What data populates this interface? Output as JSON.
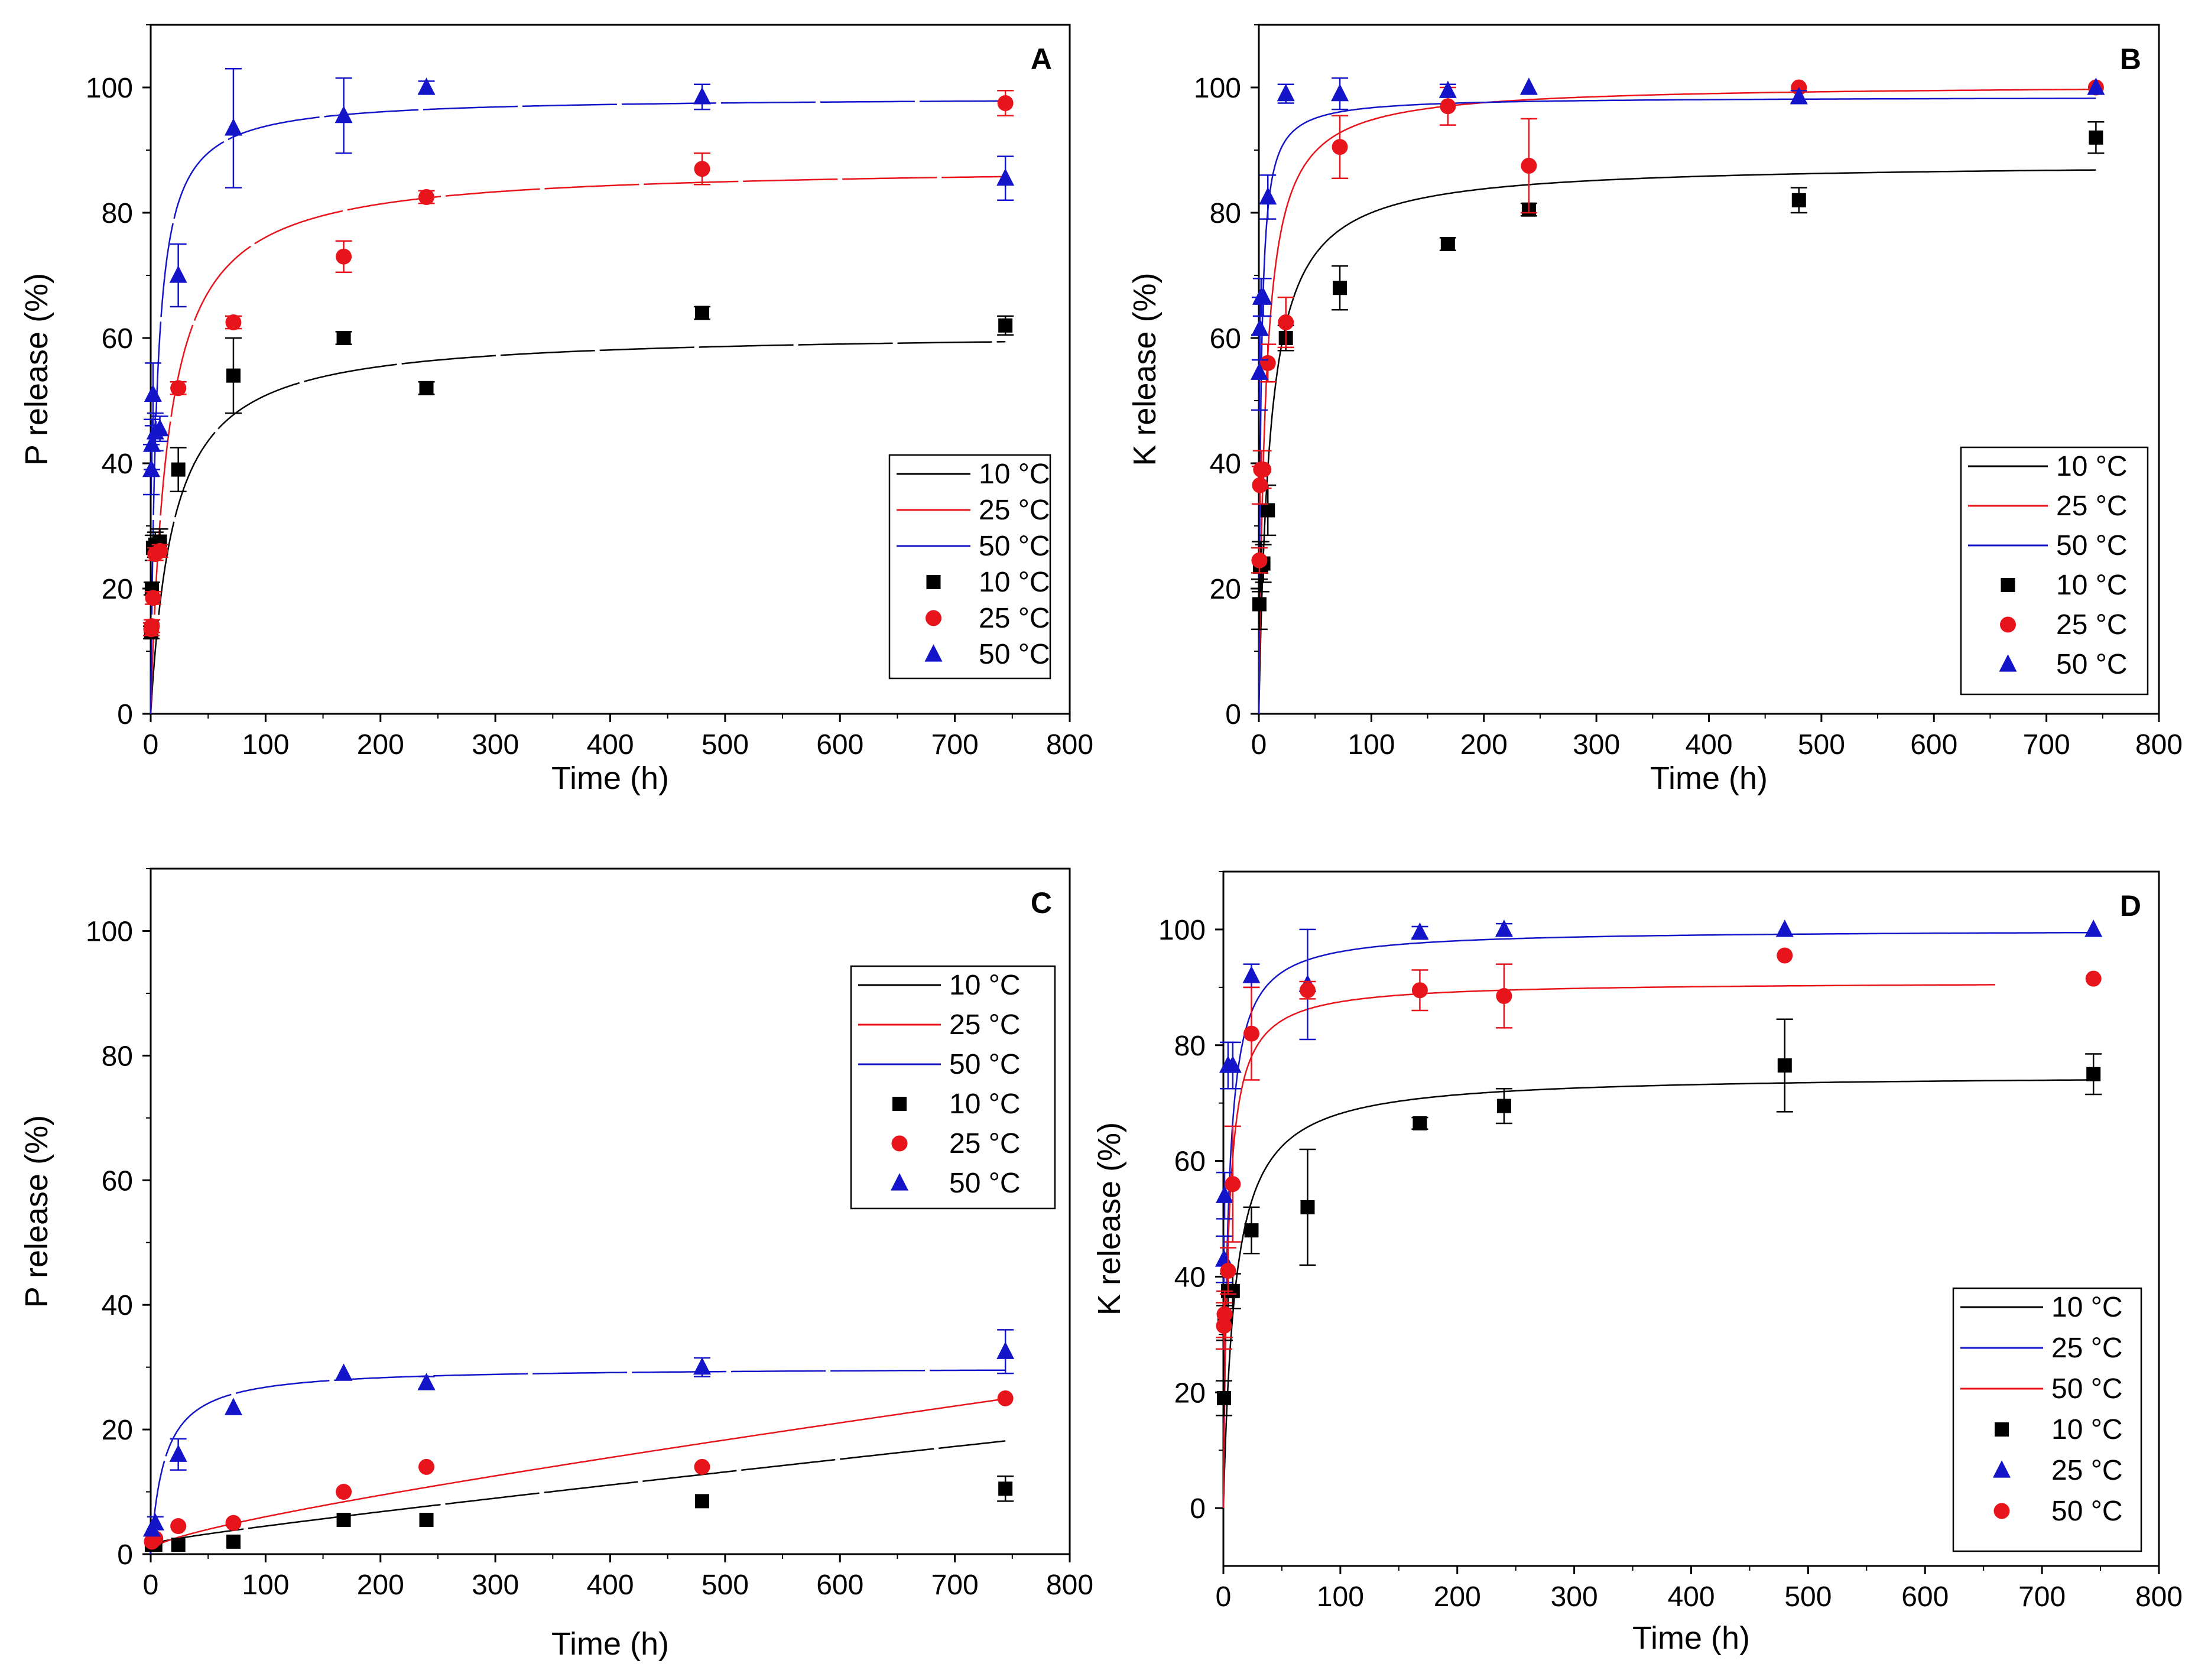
{
  "figure": {
    "colors": {
      "black": "#000000",
      "red": "#e8141c",
      "blue": "#1414c8"
    },
    "marker_icons": {
      "square": "square-marker-icon",
      "circle": "circle-marker-icon",
      "triangle": "triangle-marker-icon"
    }
  },
  "chart_data": [
    {
      "panel": "A",
      "type": "scatter",
      "xlabel": "Time (h)",
      "ylabel": "P release (%)",
      "xlim": [
        0,
        800
      ],
      "ylim": [
        0,
        110
      ],
      "xticks": [
        0,
        100,
        200,
        300,
        400,
        500,
        600,
        700,
        800
      ],
      "yticks": [
        0,
        20,
        40,
        60,
        80,
        100
      ],
      "xtick_labels": [
        "0",
        "100",
        "200",
        "300",
        "400",
        "500",
        "600",
        "700",
        "800"
      ],
      "ytick_labels": [
        "0",
        "20",
        "40",
        "60",
        "80",
        "100"
      ],
      "legend_position": "bottom-right",
      "legend": [
        {
          "label": "10 °C",
          "kind": "line",
          "color": "#000000"
        },
        {
          "label": "25 °C",
          "kind": "line",
          "color": "#e8141c"
        },
        {
          "label": "50 °C",
          "kind": "line",
          "color": "#1414c8"
        },
        {
          "label": "10 °C",
          "kind": "marker",
          "marker": "square",
          "color": "#000000"
        },
        {
          "label": "25 °C",
          "kind": "marker",
          "marker": "circle",
          "color": "#e8141c"
        },
        {
          "label": "50 °C",
          "kind": "marker",
          "marker": "triangle",
          "color": "#1414c8"
        }
      ],
      "series": [
        {
          "name": "10 °C",
          "marker": "square",
          "color": "#000000",
          "x": [
            0.5,
            1,
            2,
            4,
            8,
            24,
            72,
            168,
            240,
            480,
            744
          ],
          "y": [
            13,
            20,
            26.5,
            27,
            27.5,
            39,
            54,
            60,
            52,
            64,
            62
          ],
          "err": [
            1,
            1,
            2,
            2,
            2,
            3.5,
            6,
            1,
            1,
            1,
            1.5
          ],
          "fit": {
            "max": 61,
            "k": 20,
            "start": 0,
            "end": 744,
            "dash": "long"
          }
        },
        {
          "name": "25 °C",
          "marker": "circle",
          "color": "#e8141c",
          "x": [
            0.5,
            1,
            2,
            4,
            8,
            24,
            72,
            168,
            240,
            480,
            744
          ],
          "y": [
            13.5,
            14,
            18.5,
            25.5,
            26,
            52,
            62.5,
            73,
            82.5,
            87,
            97.5
          ],
          "err": [
            1,
            1,
            1,
            1,
            1,
            1,
            1,
            2.5,
            1,
            2.5,
            2
          ],
          "fit": {
            "max": 87.5,
            "k": 15,
            "start": 0,
            "end": 744,
            "dash": "long"
          }
        },
        {
          "name": "50 °C",
          "marker": "triangle",
          "color": "#1414c8",
          "x": [
            0.5,
            1,
            2,
            4,
            8,
            24,
            72,
            168,
            240,
            480,
            744
          ],
          "y": [
            39,
            43,
            51,
            45,
            45.5,
            70,
            93.5,
            95.5,
            100,
            98.5,
            85.5
          ],
          "err": [
            4,
            4,
            5,
            3,
            2,
            5,
            9.5,
            6,
            1,
            2,
            3.5
          ],
          "fit": {
            "max": 98.5,
            "k": 5,
            "start": 0,
            "end": 744,
            "dash": "long"
          }
        }
      ]
    },
    {
      "panel": "B",
      "type": "scatter",
      "xlabel": "Time (h)",
      "ylabel": "K release (%)",
      "xlim": [
        0,
        800
      ],
      "ylim": [
        0,
        110
      ],
      "xticks": [
        0,
        100,
        200,
        300,
        400,
        500,
        600,
        700,
        800
      ],
      "yticks": [
        0,
        20,
        40,
        60,
        80,
        100
      ],
      "xtick_labels": [
        "0",
        "100",
        "200",
        "300",
        "400",
        "500",
        "600",
        "700",
        "800"
      ],
      "ytick_labels": [
        "0",
        "20",
        "40",
        "60",
        "80",
        "100"
      ],
      "legend_position": "bottom-right",
      "legend": [
        {
          "label": "10 °C",
          "kind": "line",
          "color": "#000000"
        },
        {
          "label": "25 °C",
          "kind": "line",
          "color": "#e8141c"
        },
        {
          "label": "50 °C",
          "kind": "line",
          "color": "#1414c8"
        },
        {
          "label": "10 °C",
          "kind": "marker",
          "marker": "square",
          "color": "#000000"
        },
        {
          "label": "25 °C",
          "kind": "marker",
          "marker": "circle",
          "color": "#e8141c"
        },
        {
          "label": "50 °C",
          "kind": "marker",
          "marker": "triangle",
          "color": "#1414c8"
        }
      ],
      "series": [
        {
          "name": "10 °C",
          "marker": "square",
          "color": "#000000",
          "x": [
            0.5,
            1,
            2,
            4,
            8,
            24,
            72,
            168,
            240,
            480,
            744
          ],
          "y": [
            17.5,
            23.5,
            23.5,
            24,
            32.5,
            60,
            68,
            75,
            80.5,
            82,
            92
          ],
          "err": [
            4,
            4,
            4,
            3,
            4,
            2,
            3.5,
            1,
            1,
            2,
            2.5
          ],
          "fit": {
            "max": 88,
            "k": 10,
            "start": 0,
            "end": 744,
            "dash": "solid"
          }
        },
        {
          "name": "25 °C",
          "marker": "circle",
          "color": "#e8141c",
          "x": [
            0.5,
            1,
            2,
            4,
            8,
            24,
            72,
            168,
            240,
            480,
            744
          ],
          "y": [
            24.5,
            36.5,
            39,
            39,
            56,
            62.5,
            90.5,
            97,
            87.5,
            100,
            100
          ],
          "err": [
            2,
            3,
            3,
            3,
            3,
            4,
            5,
            3,
            7.5,
            0.5,
            0.5
          ],
          "fit": {
            "max": 100.5,
            "k": 6,
            "start": 0,
            "end": 744,
            "dash": "solid"
          }
        },
        {
          "name": "50 °C",
          "marker": "triangle",
          "color": "#1414c8",
          "x": [
            0.5,
            1,
            2,
            4,
            8,
            24,
            72,
            168,
            240,
            480,
            744
          ],
          "y": [
            54.5,
            61.5,
            66.5,
            66.5,
            82.5,
            99,
            99,
            99.5,
            100,
            98.5,
            100
          ],
          "err": [
            6,
            5,
            3,
            3,
            3.5,
            1.5,
            2.5,
            1,
            0.5,
            1,
            0.5
          ],
          "fit": {
            "max": 98.5,
            "k": 1.8,
            "start": 0,
            "end": 744,
            "dash": "solid"
          }
        }
      ]
    },
    {
      "panel": "C",
      "type": "scatter",
      "xlabel": "Time (h)",
      "ylabel": "P release (%)",
      "xlim": [
        0,
        800
      ],
      "ylim": [
        0,
        110
      ],
      "xticks": [
        0,
        100,
        200,
        300,
        400,
        500,
        600,
        700,
        800
      ],
      "yticks": [
        0,
        20,
        40,
        60,
        80,
        100
      ],
      "xtick_labels": [
        "0",
        "100",
        "200",
        "300",
        "400",
        "500",
        "600",
        "700",
        "800"
      ],
      "ytick_labels": [
        "0",
        "20",
        "40",
        "60",
        "80",
        "100"
      ],
      "legend_position": "top-right",
      "legend": [
        {
          "label": "10 °C",
          "kind": "line",
          "color": "#000000"
        },
        {
          "label": "25 °C",
          "kind": "line",
          "color": "#e8141c"
        },
        {
          "label": "50 °C",
          "kind": "line",
          "color": "#1414c8"
        },
        {
          "label": "10 °C",
          "kind": "marker",
          "marker": "square",
          "color": "#000000"
        },
        {
          "label": "25 °C",
          "kind": "marker",
          "marker": "circle",
          "color": "#e8141c"
        },
        {
          "label": "50 °C",
          "kind": "marker",
          "marker": "triangle",
          "color": "#1414c8"
        }
      ],
      "series": [
        {
          "name": "10 °C",
          "marker": "square",
          "color": "#000000",
          "x": [
            1,
            4,
            24,
            72,
            168,
            240,
            480,
            744
          ],
          "y": [
            1.5,
            1.5,
            1.5,
            2,
            5.5,
            5.5,
            8.5,
            10.5
          ],
          "err": [
            0.5,
            0.5,
            0.5,
            0.5,
            0.5,
            0.5,
            0.5,
            2
          ],
          "fit": {
            "type": "linear_sqrt",
            "a": 1.5,
            "b": 0.018,
            "c": 0.12,
            "start": 0,
            "end": 744,
            "dash": "long"
          }
        },
        {
          "name": "25 °C",
          "marker": "circle",
          "color": "#e8141c",
          "x": [
            1,
            4,
            24,
            72,
            168,
            240,
            480,
            744
          ],
          "y": [
            2,
            2.5,
            4.5,
            5,
            10,
            14,
            14,
            25
          ],
          "err": [
            0.5,
            0.5,
            0.5,
            0.5,
            0.5,
            0.5,
            0.5,
            0.5
          ],
          "fit": {
            "type": "linear_sqrt",
            "a": 0.5,
            "b": 0.02,
            "c": 0.35,
            "start": 0,
            "end": 744,
            "dash": "solid"
          }
        },
        {
          "name": "50 °C",
          "marker": "triangle",
          "color": "#1414c8",
          "x": [
            1,
            4,
            24,
            72,
            168,
            240,
            480,
            744
          ],
          "y": [
            4,
            5,
            16,
            23.5,
            29,
            27.5,
            30,
            32.5
          ],
          "err": [
            0.5,
            1,
            2.5,
            0.5,
            0.5,
            1,
            1.5,
            3.5
          ],
          "fit": {
            "max": 30,
            "k": 12,
            "start": 0,
            "end": 744,
            "dash": "long"
          }
        }
      ]
    },
    {
      "panel": "D",
      "type": "scatter",
      "xlabel": "Time (h)",
      "ylabel": "K release (%)",
      "xlim": [
        0,
        800
      ],
      "ylim": [
        -10,
        110
      ],
      "xticks": [
        0,
        100,
        200,
        300,
        400,
        500,
        600,
        700,
        800
      ],
      "yticks": [
        0,
        20,
        40,
        60,
        80,
        100
      ],
      "xtick_labels": [
        "0",
        "100",
        "200",
        "300",
        "400",
        "500",
        "600",
        "700",
        "800"
      ],
      "ytick_labels": [
        "0",
        "20",
        "40",
        "60",
        "80",
        "100"
      ],
      "legend_position": "bottom-right",
      "legend": [
        {
          "label": "10 °C",
          "kind": "line",
          "color": "#000000"
        },
        {
          "label": "25 °C",
          "kind": "line",
          "color": "#1414c8"
        },
        {
          "label": "50 °C",
          "kind": "line",
          "color": "#e8141c"
        },
        {
          "label": "10 °C",
          "kind": "marker",
          "marker": "square",
          "color": "#000000"
        },
        {
          "label": "25 °C",
          "kind": "marker",
          "marker": "triangle",
          "color": "#1414c8"
        },
        {
          "label": "50 °C",
          "kind": "marker",
          "marker": "circle",
          "color": "#e8141c"
        }
      ],
      "series": [
        {
          "name": "10 °C",
          "marker": "square",
          "color": "#000000",
          "x": [
            0.5,
            1,
            4,
            8,
            24,
            72,
            168,
            240,
            480,
            744
          ],
          "y": [
            19,
            32,
            37.5,
            37.5,
            48,
            52,
            66.5,
            69.5,
            76.5,
            75
          ],
          "err": [
            3,
            3,
            3,
            3,
            4,
            10,
            1,
            3,
            8,
            3.5
          ],
          "fit": {
            "max": 75,
            "k": 10,
            "start": 0,
            "end": 744,
            "dash": "solid"
          }
        },
        {
          "name": "25 °C",
          "marker": "triangle",
          "color": "#1414c8",
          "x": [
            0.5,
            1,
            4,
            8,
            24,
            72,
            168,
            240,
            480,
            744
          ],
          "y": [
            43,
            54,
            76.5,
            76.5,
            92,
            90.5,
            99.5,
            100,
            100,
            100
          ],
          "err": [
            4,
            4,
            4,
            4,
            2,
            9.5,
            1,
            1,
            0.5,
            0.5
          ],
          "fit": {
            "max": 100,
            "k": 4,
            "start": 0,
            "end": 744,
            "dash": "solid"
          }
        },
        {
          "name": "50 °C",
          "marker": "circle",
          "color": "#e8141c",
          "x": [
            0.5,
            1,
            4,
            8,
            24,
            72,
            168,
            240,
            480,
            744
          ],
          "y": [
            31.5,
            33.5,
            41,
            56,
            82,
            89.5,
            89.5,
            88.5,
            95.5,
            91.5
          ],
          "err": [
            4,
            4,
            4,
            10,
            8,
            1.5,
            3.5,
            5.5,
            0.5,
            0.5
          ],
          "fit": {
            "max": 91,
            "k": 4,
            "start": 0,
            "end": 660,
            "dash": "solid"
          }
        }
      ]
    }
  ]
}
